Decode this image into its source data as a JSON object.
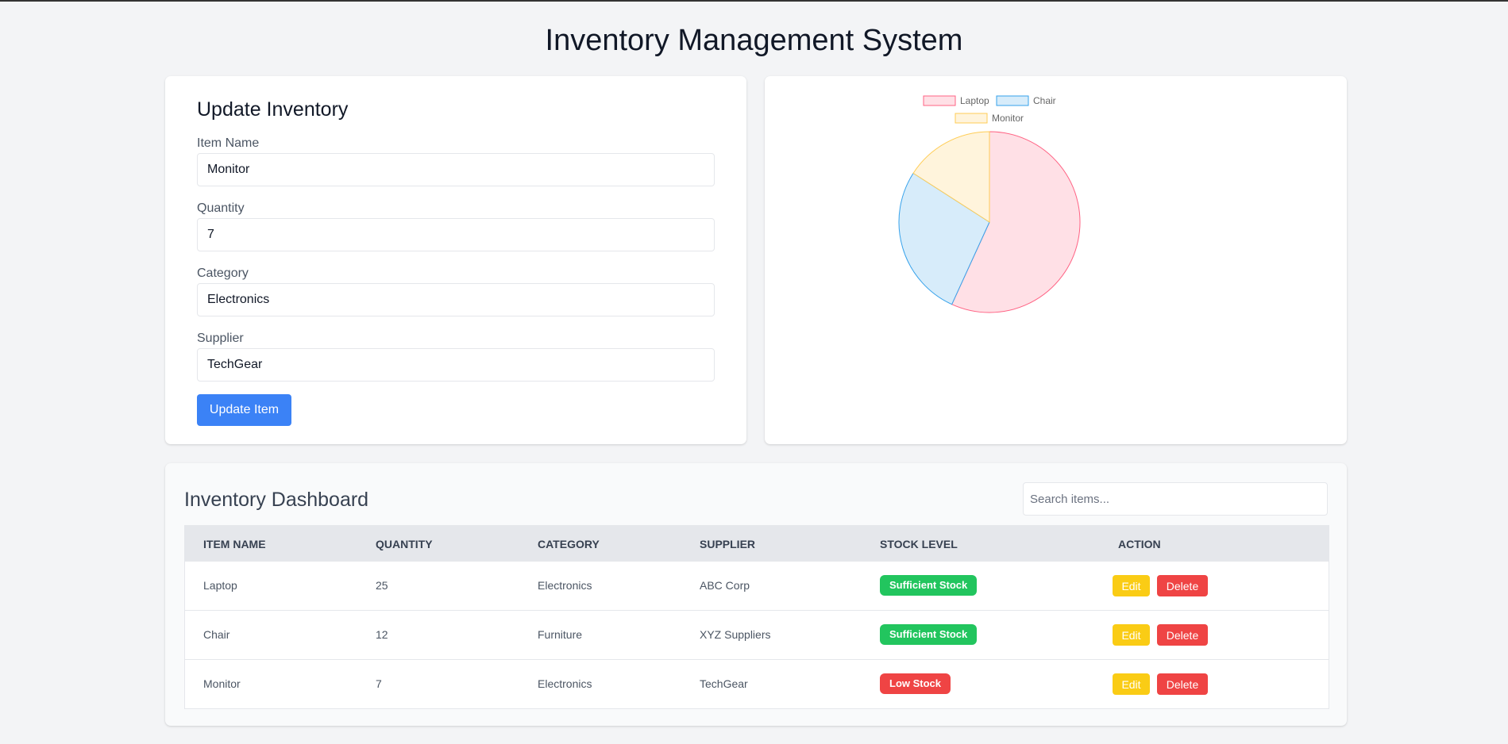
{
  "app": {
    "title": "Inventory Management System"
  },
  "form": {
    "title": "Update Inventory",
    "fields": [
      {
        "label": "Item Name",
        "value": "Monitor"
      },
      {
        "label": "Quantity",
        "value": "7"
      },
      {
        "label": "Category",
        "value": "Electronics"
      },
      {
        "label": "Supplier",
        "value": "TechGear"
      }
    ],
    "submit_label": "Update Item"
  },
  "chart_data": {
    "type": "pie",
    "labels": [
      "Laptop",
      "Chair",
      "Monitor"
    ],
    "values": [
      25,
      12,
      7
    ],
    "colors": {
      "fill": [
        "#ffe0e6",
        "#d7ecfa",
        "#fff4dc"
      ],
      "stroke": [
        "#ff6384",
        "#36a2eb",
        "#ffcd56"
      ]
    },
    "legend": "top"
  },
  "dashboard": {
    "title": "Inventory Dashboard",
    "search_placeholder": "Search items...",
    "columns": [
      "Item Name",
      "Quantity",
      "Category",
      "Supplier",
      "Stock Level",
      "Action"
    ],
    "rows": [
      {
        "name": "Laptop",
        "quantity": "25",
        "category": "Electronics",
        "supplier": "ABC Corp",
        "stock": "Sufficient Stock",
        "edit": "Edit",
        "delete": "Delete"
      },
      {
        "name": "Chair",
        "quantity": "12",
        "category": "Furniture",
        "supplier": "XYZ Suppliers",
        "stock": "Sufficient Stock",
        "edit": "Edit",
        "delete": "Delete"
      },
      {
        "name": "Monitor",
        "quantity": "7",
        "category": "Electronics",
        "supplier": "TechGear",
        "stock": "Low Stock",
        "edit": "Edit",
        "delete": "Delete"
      }
    ]
  }
}
